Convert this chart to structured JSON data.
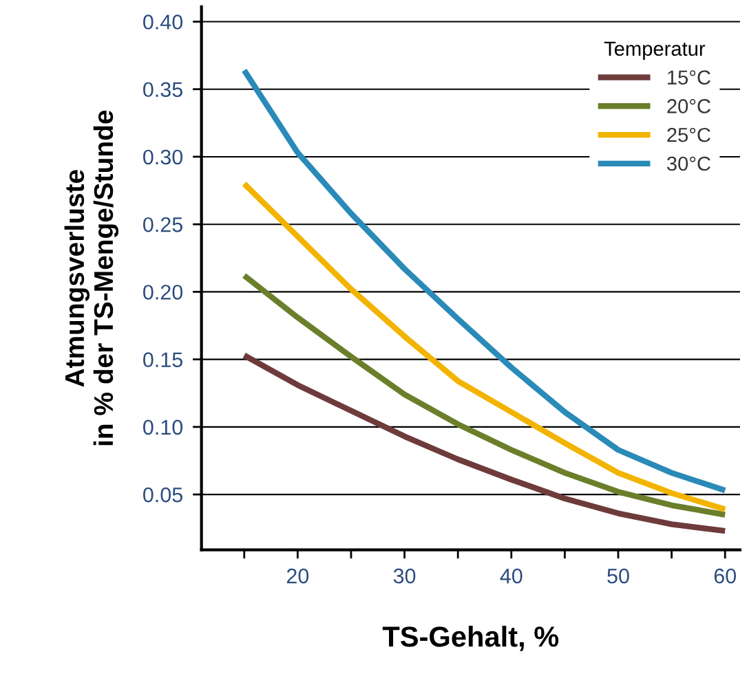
{
  "chart_data": {
    "type": "line",
    "xlabel": "TS-Gehalt, %",
    "ylabel": "Atmungsverluste\nin % der TS-Menge/Stunde",
    "legend_title": "Temperatur",
    "x": [
      15,
      20,
      25,
      30,
      35,
      40,
      45,
      50,
      55,
      60
    ],
    "series": [
      {
        "name": "15°C",
        "color": "#6e3b3b",
        "values": [
          0.153,
          0.131,
          0.112,
          0.093,
          0.076,
          0.061,
          0.047,
          0.036,
          0.028,
          0.023
        ]
      },
      {
        "name": "20°C",
        "color": "#6b7f2a",
        "values": [
          0.212,
          0.181,
          0.152,
          0.124,
          0.102,
          0.083,
          0.066,
          0.052,
          0.042,
          0.035
        ]
      },
      {
        "name": "25°C",
        "color": "#f2b400",
        "values": [
          0.28,
          0.241,
          0.202,
          0.167,
          0.134,
          0.111,
          0.088,
          0.066,
          0.051,
          0.039
        ]
      },
      {
        "name": "30°C",
        "color": "#2a8ab8",
        "values": [
          0.364,
          0.303,
          0.258,
          0.217,
          0.18,
          0.144,
          0.111,
          0.083,
          0.066,
          0.053
        ]
      }
    ],
    "xlim": [
      11,
      61.4
    ],
    "ylim": [
      0.009,
      0.411
    ],
    "xticks": [
      {
        "value": 15,
        "label": null
      },
      {
        "value": 20,
        "label": "20"
      },
      {
        "value": 25,
        "label": null
      },
      {
        "value": 30,
        "label": "30"
      },
      {
        "value": 35,
        "label": null
      },
      {
        "value": 40,
        "label": "40"
      },
      {
        "value": 45,
        "label": null
      },
      {
        "value": 50,
        "label": "50"
      },
      {
        "value": 55,
        "label": null
      },
      {
        "value": 60,
        "label": "60"
      }
    ],
    "yticks": [
      {
        "value": 0.05,
        "label": "0.05"
      },
      {
        "value": 0.1,
        "label": "0.10"
      },
      {
        "value": 0.15,
        "label": "0.15"
      },
      {
        "value": 0.2,
        "label": "0.20"
      },
      {
        "value": 0.25,
        "label": "0.25"
      },
      {
        "value": 0.3,
        "label": "0.30"
      },
      {
        "value": 0.35,
        "label": "0.35"
      },
      {
        "value": 0.4,
        "label": "0.40"
      }
    ],
    "grid": "y",
    "legend": "top right",
    "marker": "none",
    "line_style": "solid"
  }
}
